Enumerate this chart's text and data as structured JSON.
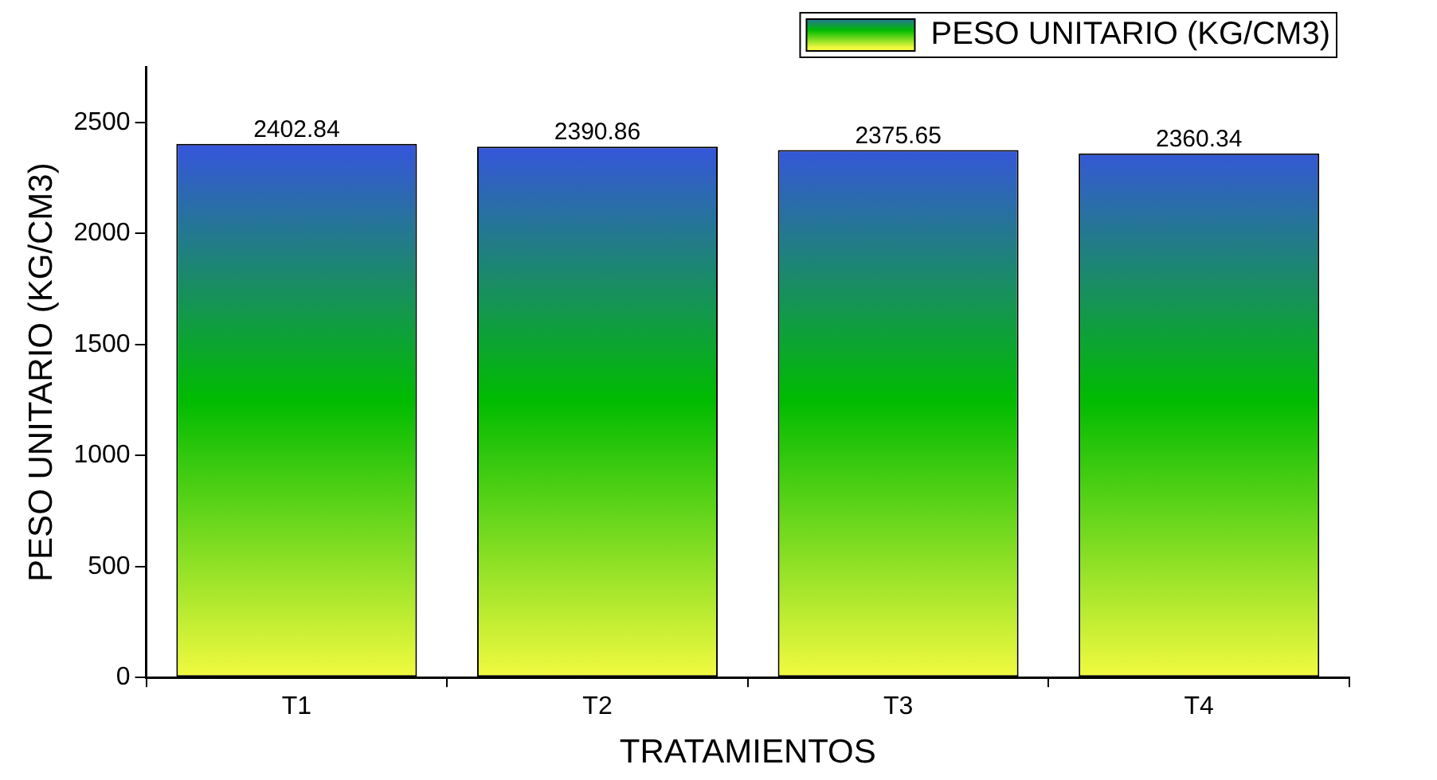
{
  "chart_data": {
    "type": "bar",
    "xlabel": "TRATAMIENTOS",
    "ylabel": "PESO UNITARIO (KG/CM3)",
    "categories": [
      "T1",
      "T2",
      "T3",
      "T4"
    ],
    "series": [
      {
        "name": "PESO UNITARIO (KG/CM3)",
        "color": "#00bb00",
        "values": [
          2402.84,
          2390.86,
          2375.65,
          2360.34
        ]
      }
    ],
    "ylim": [
      0,
      2750
    ],
    "yticks": [
      0,
      500,
      1000,
      1500,
      2000,
      2500
    ],
    "data_labels": true,
    "legend": "top right"
  }
}
